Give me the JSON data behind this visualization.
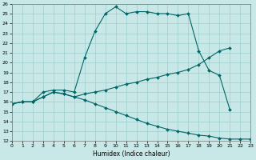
{
  "xlabel": "Humidex (Indice chaleur)",
  "xlim": [
    0,
    23
  ],
  "ylim": [
    12,
    26
  ],
  "xticks": [
    0,
    1,
    2,
    3,
    4,
    5,
    6,
    7,
    8,
    9,
    10,
    11,
    12,
    13,
    14,
    15,
    16,
    17,
    18,
    19,
    20,
    21,
    22,
    23
  ],
  "yticks": [
    12,
    13,
    14,
    15,
    16,
    17,
    18,
    19,
    20,
    21,
    22,
    23,
    24,
    25,
    26
  ],
  "bg_color": "#c8e8e8",
  "grid_color": "#9ecece",
  "line_color": "#006666",
  "series1_x": [
    0,
    1,
    2,
    3,
    4,
    5,
    6,
    7,
    8,
    9,
    10,
    11,
    12,
    13,
    14,
    15,
    16,
    17,
    18,
    19,
    20,
    21
  ],
  "series1_y": [
    15.8,
    16.0,
    16.0,
    17.0,
    17.2,
    17.2,
    17.0,
    20.5,
    23.2,
    25.0,
    25.7,
    25.0,
    25.2,
    25.2,
    25.0,
    25.0,
    24.8,
    25.0,
    21.2,
    19.2,
    18.7,
    15.2
  ],
  "series2_x": [
    0,
    1,
    2,
    3,
    4,
    5,
    6,
    7,
    8,
    9,
    10,
    11,
    12,
    13,
    14,
    15,
    16,
    17,
    18,
    19,
    20,
    21
  ],
  "series2_y": [
    15.8,
    16.0,
    16.0,
    16.5,
    17.0,
    16.8,
    16.5,
    16.8,
    17.0,
    17.2,
    17.5,
    17.8,
    18.0,
    18.3,
    18.5,
    18.8,
    19.0,
    19.3,
    19.8,
    20.5,
    21.2,
    21.5
  ],
  "series3_x": [
    0,
    1,
    2,
    3,
    4,
    5,
    6,
    7,
    8,
    9,
    10,
    11,
    12,
    13,
    14,
    15,
    16,
    17,
    18,
    19,
    20,
    21,
    22,
    23
  ],
  "series3_y": [
    15.8,
    16.0,
    16.0,
    16.5,
    17.0,
    16.8,
    16.5,
    16.2,
    15.8,
    15.4,
    15.0,
    14.6,
    14.2,
    13.8,
    13.5,
    13.2,
    13.0,
    12.8,
    12.6,
    12.5,
    12.3,
    12.2,
    12.2,
    12.2
  ]
}
